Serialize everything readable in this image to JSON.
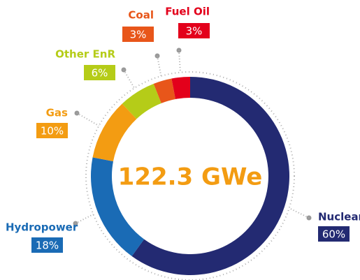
{
  "chart_data": {
    "type": "donut",
    "title": "122.3 GWe",
    "categories": [
      "Nuclear",
      "Hydropower",
      "Gas",
      "Other EnR",
      "Coal",
      "Fuel Oil"
    ],
    "values": [
      60,
      18,
      10,
      6,
      3,
      3
    ],
    "value_labels": [
      "60%",
      "18%",
      "10%",
      "6%",
      "3%",
      "3%"
    ],
    "colors": [
      "#232a72",
      "#1a6bb5",
      "#f39c12",
      "#b5cc18",
      "#e8561a",
      "#e3001b"
    ]
  }
}
